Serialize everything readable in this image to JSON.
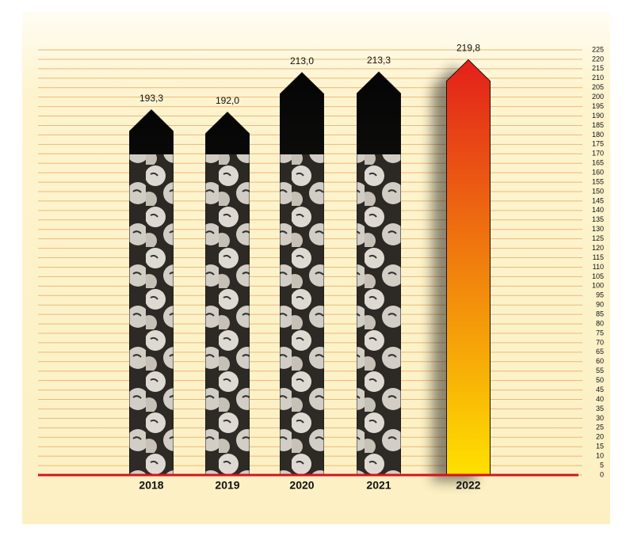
{
  "chart_data": {
    "type": "bar",
    "categories": [
      "2018",
      "2019",
      "2020",
      "2021",
      "2022"
    ],
    "values": [
      193.3,
      192.0,
      213.0,
      213.3,
      219.8
    ],
    "value_labels": [
      "193,3",
      "192,0",
      "213,0",
      "213,3",
      "219,8"
    ],
    "top_colors": [
      "#050505",
      "#050505",
      "#050505",
      "#050505",
      "#e3201b"
    ],
    "bottom_colors": [
      "#2a2622",
      "#2a2622",
      "#2a2622",
      "#2a2622",
      "#ffe000"
    ],
    "photo_fill": [
      true,
      true,
      true,
      true,
      false
    ],
    "ylim": [
      0,
      225
    ],
    "yticks": [
      0,
      5,
      10,
      15,
      20,
      25,
      30,
      35,
      40,
      45,
      50,
      55,
      60,
      65,
      70,
      75,
      80,
      85,
      90,
      95,
      100,
      105,
      110,
      115,
      120,
      125,
      130,
      135,
      140,
      145,
      150,
      155,
      160,
      165,
      170,
      175,
      180,
      185,
      190,
      195,
      200,
      205,
      210,
      215,
      220,
      225
    ],
    "grid": true,
    "grid_color": "#efb779",
    "baseline_color": "#d8101c"
  }
}
